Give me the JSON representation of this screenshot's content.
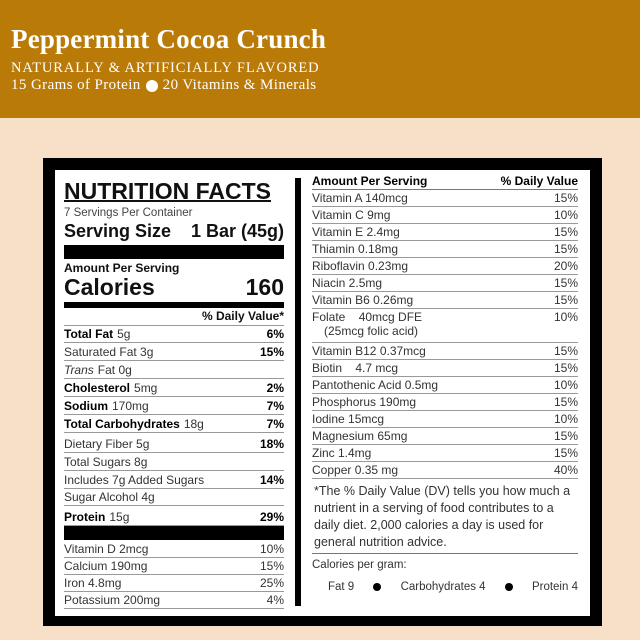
{
  "header": {
    "title": "Peppermint Cocoa Crunch",
    "subtitle": "NATURALLY & ARTIFICIALLY FLAVORED",
    "protein_claim": "15 Grams of Protein",
    "vitamins_claim": "20 Vitamins & Minerals",
    "background_color": "#b97a07"
  },
  "facts": {
    "title": "NUTRITION FACTS",
    "servings": "7 Servings Per Container",
    "serving_size_label": "Serving Size",
    "serving_size_value": "1 Bar (45g)",
    "amount_per_serving": "Amount Per Serving",
    "calories_label": "Calories",
    "calories_value": "160",
    "dv_header": "% Daily Value*",
    "nutrients": [
      {
        "name": "Total Fat",
        "amount": "5g",
        "dv": "6%"
      },
      {
        "name": "Saturated Fat 3g",
        "amount": "",
        "dv": "15%"
      },
      {
        "name": "Trans",
        "amount": "Fat 0g",
        "dv": ""
      },
      {
        "name": "Cholesterol",
        "amount": "5mg",
        "dv": "2%"
      },
      {
        "name": "Sodium",
        "amount": "170mg",
        "dv": "7%"
      },
      {
        "name": "Total Carbohydrates",
        "amount": "18g",
        "dv": "7%"
      },
      {
        "name": "Dietary Fiber 5g",
        "amount": "",
        "dv": "18%"
      },
      {
        "name": "Total Sugars 8g",
        "amount": "",
        "dv": ""
      },
      {
        "name": "Includes 7g Added Sugars",
        "amount": "",
        "dv": "14%"
      },
      {
        "name": "Sugar Alcohol 4g",
        "amount": "",
        "dv": ""
      },
      {
        "name": "Protein",
        "amount": "15g",
        "dv": "29%"
      }
    ],
    "minerals": [
      {
        "name": "Vitamin D 2mcg",
        "dv": "10%"
      },
      {
        "name": "Calcium 190mg",
        "dv": "15%"
      },
      {
        "name": "Iron 4.8mg",
        "dv": "25%"
      },
      {
        "name": "Potassium 200mg",
        "dv": "4%"
      }
    ]
  },
  "vitamins": {
    "header_left": "Amount Per Serving",
    "header_right": "% Daily Value",
    "items": [
      {
        "name": "Vitamin A 140mcg",
        "dv": "15%"
      },
      {
        "name": "Vitamin C 9mg",
        "dv": "10%"
      },
      {
        "name": "Vitamin E 2.4mg",
        "dv": "15%"
      },
      {
        "name": "Thiamin 0.18mg",
        "dv": "15%"
      },
      {
        "name": "Riboflavin 0.23mg",
        "dv": "20%"
      },
      {
        "name": "Niacin 2.5mg",
        "dv": "15%"
      },
      {
        "name": "Vitamin B6 0.26mg",
        "dv": "15%"
      },
      {
        "name": "Folate    40mcg DFE",
        "sub": "(25mcg folic acid)",
        "dv": "10%"
      },
      {
        "name": "Vitamin B12 0.37mcg",
        "dv": "15%"
      },
      {
        "name": "Biotin    4.7 mcg",
        "dv": "15%"
      },
      {
        "name": "Pantothenic Acid 0.5mg",
        "dv": "10%"
      },
      {
        "name": "Phosphorus 190mg",
        "dv": "15%"
      },
      {
        "name": "Iodine 15mcg",
        "dv": "10%"
      },
      {
        "name": "Magnesium 65mg",
        "dv": "15%"
      },
      {
        "name": "Zinc 1.4mg",
        "dv": "15%"
      },
      {
        "name": "Copper 0.35 mg",
        "dv": "40%"
      }
    ],
    "footnote": "*The % Daily Value (DV) tells you how much a nutrient in a serving of food contributes to a daily diet. 2,000 calories a day is used for general nutrition advice.",
    "cal_per_gram_label": "Calories per gram:",
    "cal_per_gram": [
      "Fat 9",
      "Carbohydrates 4",
      "Protein 4"
    ]
  }
}
